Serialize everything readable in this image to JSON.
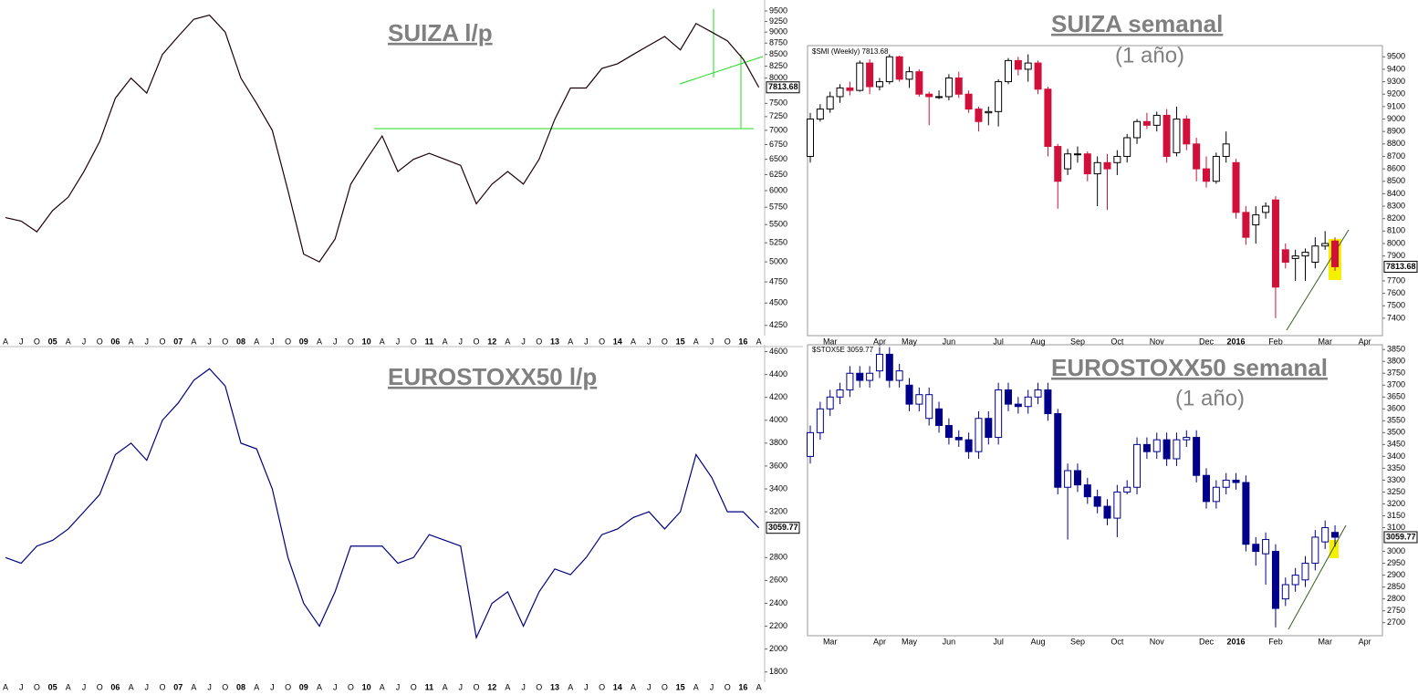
{
  "chart_data": [
    {
      "type": "line",
      "title": "SUIZA l/p",
      "color": "#1a0008",
      "log": true,
      "last_label": "7813.68",
      "categories": [
        "A",
        "J",
        "O",
        "05",
        "A",
        "J",
        "O",
        "06",
        "A",
        "J",
        "O",
        "07",
        "A",
        "J",
        "O",
        "08",
        "A",
        "J",
        "O",
        "09",
        "A",
        "J",
        "O",
        "10",
        "A",
        "J",
        "O",
        "11",
        "A",
        "J",
        "O",
        "12",
        "A",
        "J",
        "O",
        "13",
        "A",
        "J",
        "O",
        "14",
        "A",
        "J",
        "O",
        "15",
        "A",
        "J",
        "O",
        "16",
        "A"
      ],
      "values": [
        5600,
        5550,
        5400,
        5700,
        5900,
        6300,
        6800,
        7600,
        8000,
        7700,
        8500,
        8900,
        9300,
        9400,
        9000,
        8000,
        7500,
        7000,
        6000,
        5100,
        5000,
        5300,
        6100,
        6500,
        6900,
        6300,
        6500,
        6600,
        6500,
        6400,
        5800,
        6100,
        6300,
        6100,
        6500,
        7200,
        7800,
        7800,
        8200,
        8300,
        8500,
        8700,
        8900,
        8600,
        9200,
        9000,
        8800,
        8400,
        7813.68
      ],
      "ylim": [
        4140,
        9770
      ],
      "yticks": [
        4250,
        4500,
        4750,
        5000,
        5250,
        5500,
        5750,
        6000,
        6250,
        6500,
        6750,
        7000,
        7250,
        7500,
        8000,
        8250,
        8500,
        8750,
        9000,
        9250,
        9500
      ]
    },
    {
      "type": "candlestick",
      "title": "SUIZA semanal",
      "subtitle": "(1 año)",
      "header": "$SMI (Weekly) 7813.68",
      "last_label": "7813.68",
      "colors": {
        "up": "#000000",
        "down": "#d0103a"
      },
      "categories": [
        null,
        null,
        "Mar",
        null,
        null,
        null,
        null,
        "Apr",
        null,
        null,
        "May",
        null,
        null,
        null,
        "Jun",
        null,
        null,
        null,
        null,
        "Jul",
        null,
        null,
        null,
        "Aug",
        null,
        null,
        null,
        "Sep",
        null,
        null,
        null,
        "Oct",
        null,
        null,
        null,
        "Nov",
        null,
        null,
        null,
        null,
        "Dec",
        null,
        null,
        "2016",
        null,
        null,
        null,
        "Feb",
        null,
        null,
        null,
        null,
        "Mar",
        null,
        null,
        null,
        "Apr"
      ],
      "open": [
        8700,
        9000,
        9080,
        9180,
        9250,
        9230,
        9450,
        9260,
        9300,
        9500,
        9320,
        9380,
        9200,
        9180,
        9180,
        9330,
        9200,
        9080,
        9050,
        9060,
        9300,
        9470,
        9400,
        9450,
        9240,
        8780,
        8600,
        8720,
        8720,
        8560,
        8650,
        8650,
        8700,
        8850,
        8980,
        8950,
        9030,
        8730,
        9000,
        8800,
        8600,
        8500,
        8700,
        8650,
        8250,
        8150,
        8250,
        8350,
        7950,
        7880,
        7900,
        7850,
        7980,
        8020,
        null,
        null,
        null
      ],
      "high": [
        9050,
        9120,
        9220,
        9280,
        9300,
        9470,
        9480,
        9330,
        9520,
        9510,
        9420,
        9400,
        9220,
        9230,
        9360,
        9380,
        9230,
        9100,
        9100,
        9320,
        9490,
        9500,
        9520,
        9470,
        9260,
        8800,
        8760,
        8780,
        8740,
        8700,
        8720,
        8750,
        8880,
        9000,
        9050,
        9060,
        9080,
        9100,
        9030,
        8850,
        8700,
        8730,
        8900,
        8680,
        8300,
        8300,
        8330,
        8380,
        8000,
        7950,
        7960,
        8050,
        8100,
        8050,
        null,
        null,
        null
      ],
      "low": [
        8650,
        8980,
        9050,
        9130,
        9190,
        9220,
        9200,
        9230,
        9280,
        9300,
        9250,
        9180,
        8950,
        9160,
        9150,
        9170,
        9050,
        8900,
        8950,
        8940,
        9280,
        9350,
        9300,
        9200,
        8700,
        8280,
        8550,
        8650,
        8500,
        8300,
        8270,
        8550,
        8650,
        8800,
        8920,
        8900,
        8650,
        8700,
        8750,
        8500,
        8450,
        8480,
        8650,
        8200,
        7990,
        8000,
        8200,
        7400,
        7800,
        7700,
        7700,
        7800,
        7950,
        7780,
        null,
        null,
        null
      ],
      "close": [
        9000,
        9080,
        9180,
        9250,
        9230,
        9450,
        9260,
        9300,
        9500,
        9320,
        9380,
        9200,
        9180,
        9180,
        9330,
        9200,
        9080,
        8980,
        9060,
        9300,
        9470,
        9400,
        9450,
        9240,
        8780,
        8500,
        8720,
        8720,
        8560,
        8650,
        8600,
        8700,
        8850,
        8980,
        8950,
        9030,
        8700,
        9000,
        8800,
        8600,
        8500,
        8700,
        8800,
        8250,
        8050,
        8230,
        8300,
        7650,
        7850,
        7900,
        7930,
        7980,
        8000,
        7813.68,
        null,
        null,
        null
      ],
      "ylim": [
        7260,
        9590
      ],
      "yticks": [
        7400,
        7500,
        7600,
        7700,
        7900,
        8000,
        8100,
        8200,
        8300,
        8400,
        8500,
        8600,
        8700,
        8800,
        8900,
        9000,
        9100,
        9200,
        9300,
        9400,
        9500
      ]
    },
    {
      "type": "line",
      "title": "EUROSTOXX50 l/p",
      "color": "#000080",
      "last_label": "3059.77",
      "categories": [
        "A",
        "J",
        "O",
        "05",
        "A",
        "J",
        "O",
        "06",
        "A",
        "J",
        "O",
        "07",
        "A",
        "J",
        "O",
        "08",
        "A",
        "J",
        "O",
        "09",
        "A",
        "J",
        "O",
        "10",
        "A",
        "J",
        "O",
        "11",
        "A",
        "J",
        "O",
        "12",
        "A",
        "J",
        "O",
        "13",
        "A",
        "J",
        "O",
        "14",
        "A",
        "J",
        "O",
        "15",
        "A",
        "J",
        "O",
        "16",
        "A"
      ],
      "values": [
        2800,
        2750,
        2900,
        2950,
        3050,
        3200,
        3350,
        3700,
        3800,
        3650,
        4000,
        4150,
        4350,
        4450,
        4300,
        3800,
        3750,
        3400,
        2800,
        2400,
        2200,
        2500,
        2900,
        2900,
        2900,
        2750,
        2800,
        3000,
        2950,
        2900,
        2100,
        2400,
        2500,
        2200,
        2500,
        2700,
        2650,
        2800,
        3000,
        3050,
        3150,
        3200,
        3050,
        3200,
        3700,
        3500,
        3200,
        3200,
        3059.77
      ],
      "ylim": [
        1710,
        4660
      ],
      "yticks": [
        1800,
        2000,
        2200,
        2400,
        2600,
        2800,
        3200,
        3400,
        3600,
        3800,
        4000,
        4200,
        4400,
        4600
      ]
    },
    {
      "type": "candlestick",
      "title": "EUROSTOXX50 semanal",
      "subtitle": "(1 año)",
      "header": "$STOX5E 3059.77",
      "last_label": "3059.77",
      "colors": {
        "up": "#00008b",
        "down": "#00008b"
      },
      "categories": [
        null,
        null,
        "Mar",
        null,
        null,
        null,
        null,
        "Apr",
        null,
        null,
        "May",
        null,
        null,
        null,
        "Jun",
        null,
        null,
        null,
        null,
        "Jul",
        null,
        null,
        null,
        "Aug",
        null,
        null,
        null,
        "Sep",
        null,
        null,
        null,
        "Oct",
        null,
        null,
        null,
        "Nov",
        null,
        null,
        null,
        null,
        "Dec",
        null,
        null,
        "2016",
        null,
        null,
        null,
        "Feb",
        null,
        null,
        null,
        null,
        "Mar",
        null,
        null,
        null,
        "Apr"
      ],
      "open": [
        3400,
        3500,
        3600,
        3650,
        3680,
        3750,
        3720,
        3760,
        3830,
        3720,
        3700,
        3620,
        3560,
        3600,
        3530,
        3480,
        3470,
        3420,
        3560,
        3480,
        3680,
        3620,
        3610,
        3650,
        3680,
        3580,
        3270,
        3340,
        3280,
        3230,
        3190,
        3140,
        3250,
        3270,
        3450,
        3420,
        3470,
        3390,
        3470,
        3480,
        3320,
        3210,
        3270,
        3300,
        3290,
        3030,
        2990,
        3000,
        2800,
        2860,
        2880,
        2950,
        3040,
        3080,
        null,
        null,
        null
      ],
      "high": [
        3530,
        3630,
        3680,
        3710,
        3780,
        3780,
        3780,
        3860,
        3860,
        3790,
        3730,
        3690,
        3690,
        3630,
        3560,
        3510,
        3500,
        3590,
        3590,
        3710,
        3710,
        3650,
        3680,
        3710,
        3710,
        3600,
        3370,
        3370,
        3310,
        3260,
        3220,
        3280,
        3300,
        3480,
        3480,
        3500,
        3500,
        3500,
        3510,
        3510,
        3350,
        3300,
        3330,
        3330,
        3320,
        3060,
        3080,
        3030,
        2890,
        2930,
        2980,
        3090,
        3130,
        3110,
        null,
        null,
        null
      ],
      "low": [
        3370,
        3470,
        3570,
        3620,
        3650,
        3690,
        3690,
        3730,
        3690,
        3690,
        3590,
        3590,
        3530,
        3500,
        3450,
        3440,
        3390,
        3390,
        3450,
        3450,
        3590,
        3580,
        3580,
        3620,
        3550,
        3240,
        3050,
        3250,
        3200,
        3160,
        3110,
        3060,
        3240,
        3240,
        3390,
        3390,
        3360,
        3360,
        3440,
        3290,
        3180,
        3180,
        3240,
        3260,
        3000,
        2940,
        2860,
        2680,
        2770,
        2830,
        2850,
        2920,
        3010,
        3020,
        null,
        null,
        null
      ],
      "close": [
        3500,
        3600,
        3650,
        3680,
        3750,
        3720,
        3750,
        3830,
        3720,
        3760,
        3620,
        3660,
        3660,
        3530,
        3480,
        3470,
        3420,
        3560,
        3480,
        3680,
        3620,
        3610,
        3650,
        3680,
        3580,
        3270,
        3340,
        3280,
        3230,
        3190,
        3140,
        3250,
        3270,
        3450,
        3420,
        3470,
        3390,
        3470,
        3480,
        3320,
        3210,
        3270,
        3300,
        3290,
        3030,
        3000,
        3050,
        2760,
        2860,
        2900,
        2950,
        3060,
        3100,
        3059.77,
        null,
        null,
        null
      ],
      "ylim": [
        2645,
        3870
      ],
      "yticks": [
        2700,
        2750,
        2800,
        2850,
        2900,
        2950,
        3000,
        3100,
        3150,
        3200,
        3250,
        3300,
        3350,
        3400,
        3450,
        3500,
        3550,
        3600,
        3650,
        3700,
        3750,
        3800,
        3850
      ]
    }
  ]
}
